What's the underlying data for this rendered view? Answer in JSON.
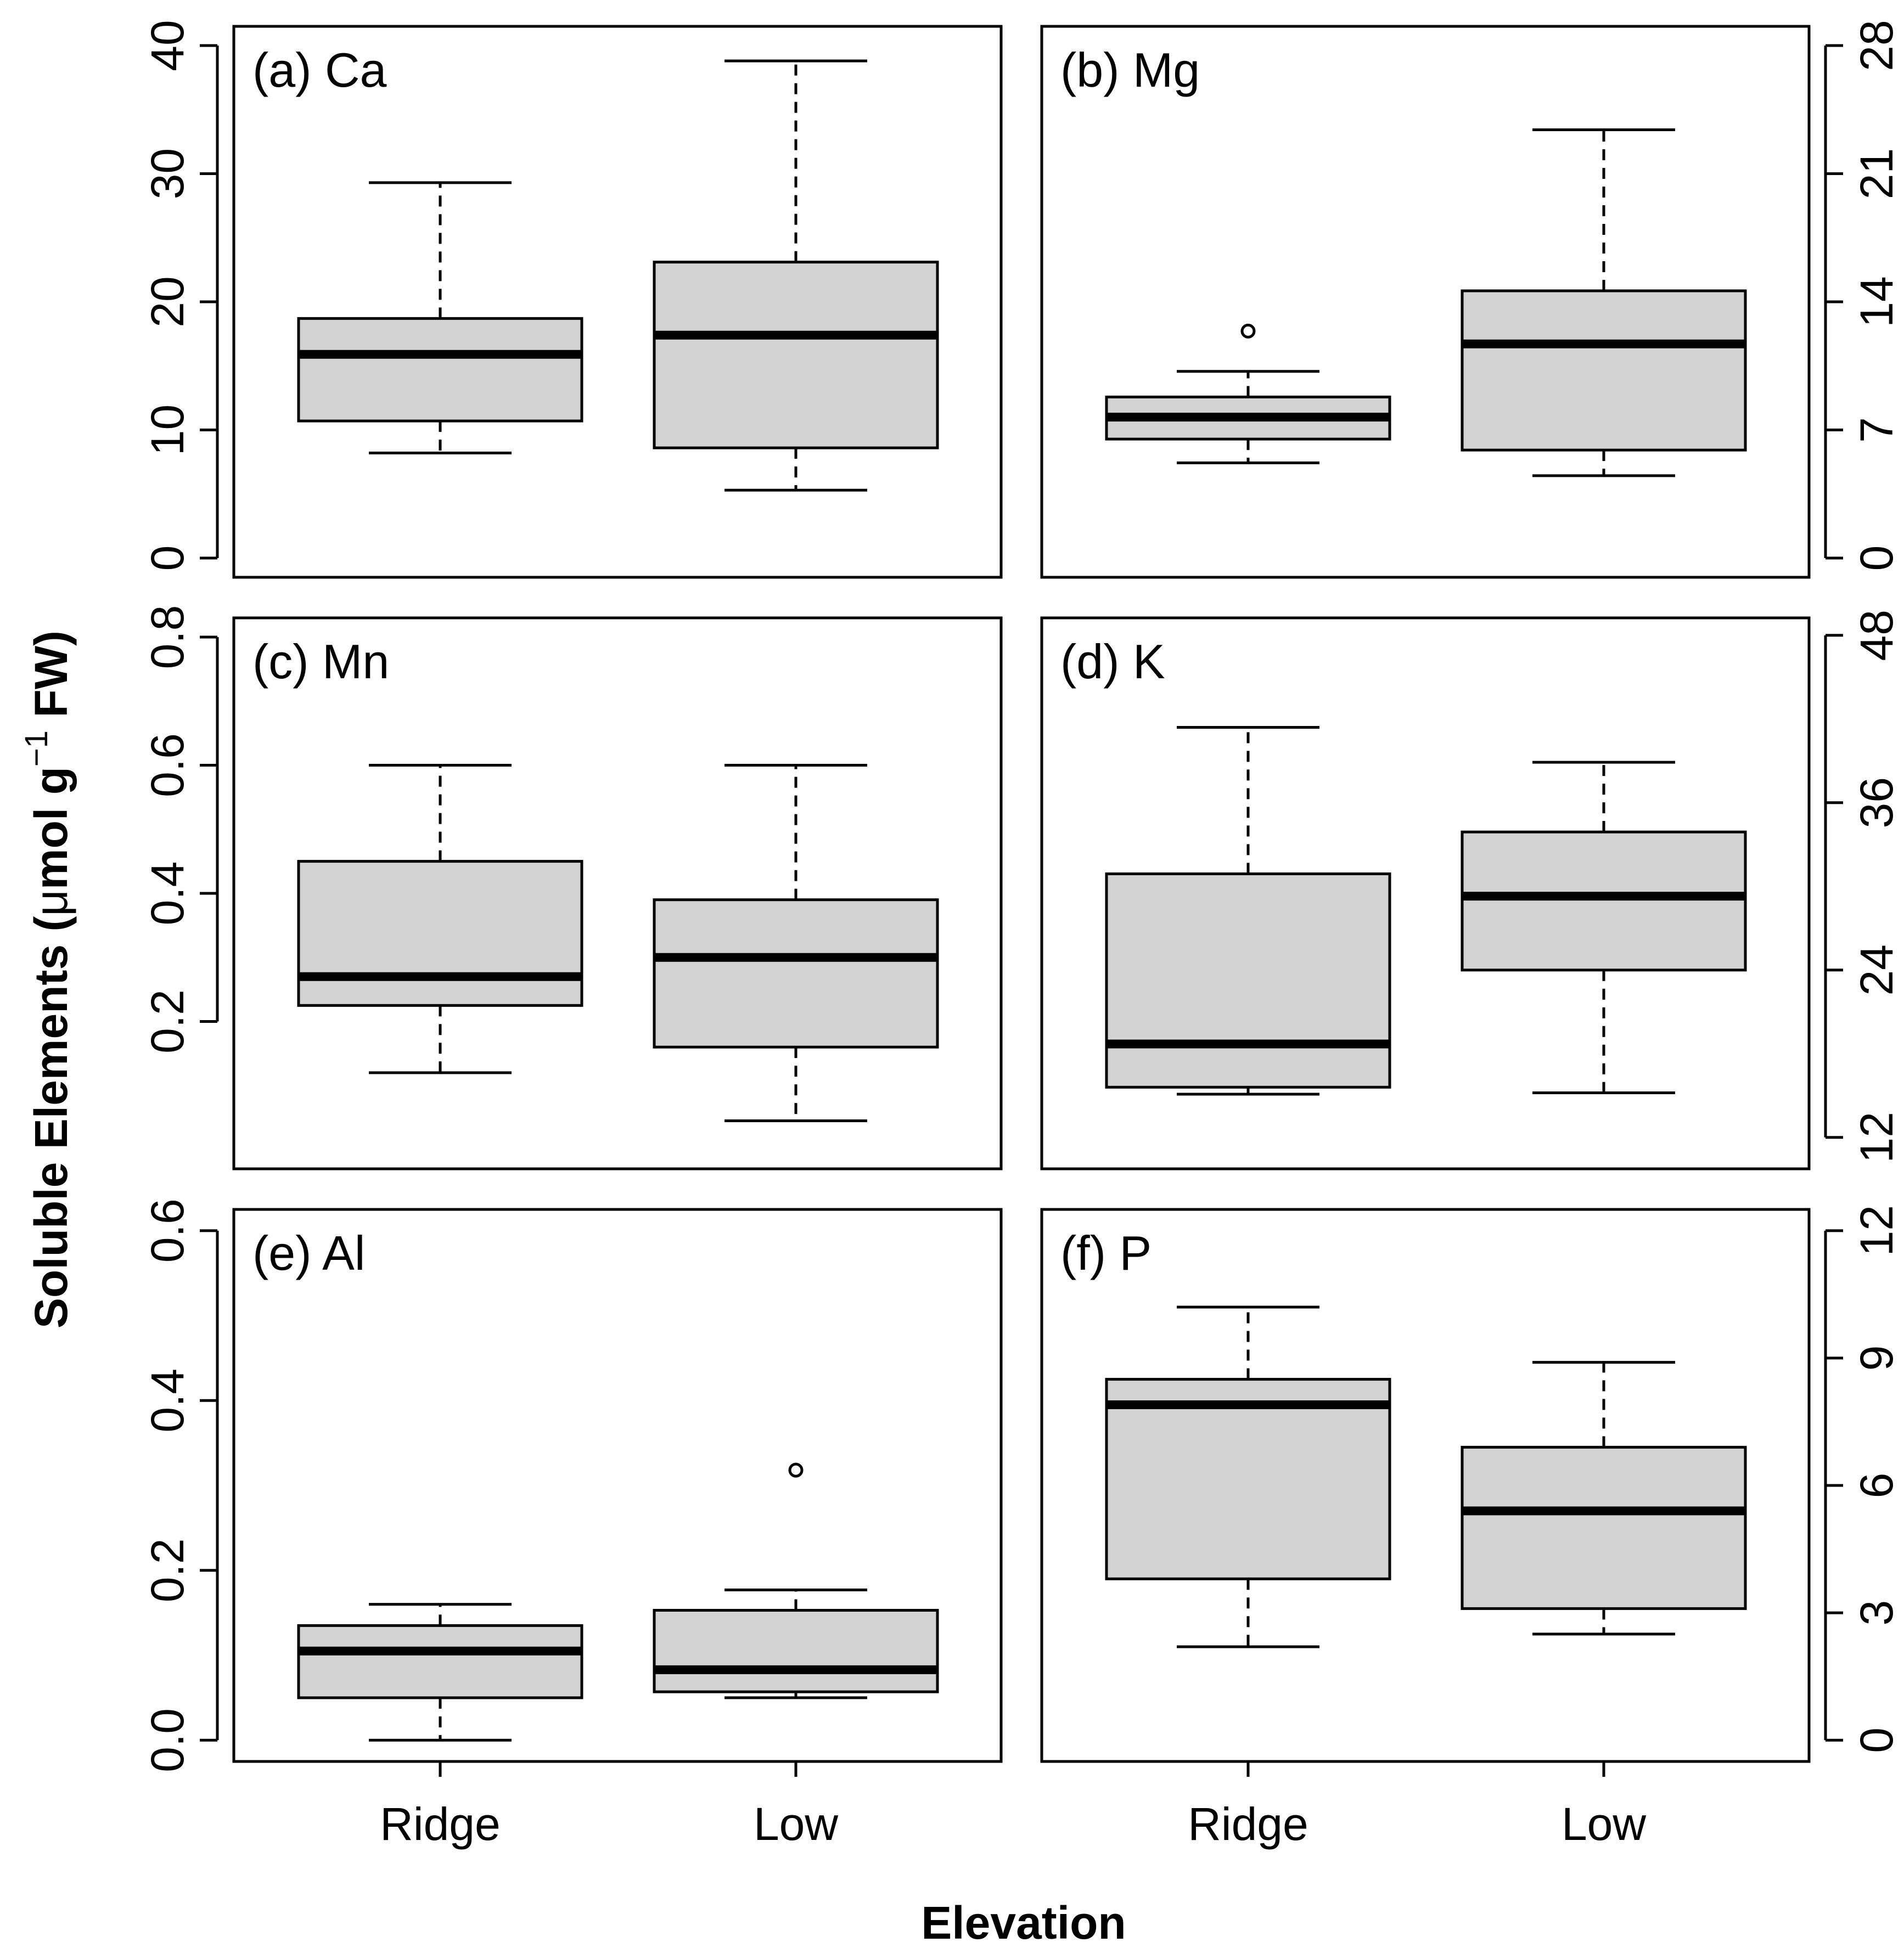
{
  "colors": {
    "box_fill": "#d3d3d3",
    "stroke": "#000000",
    "background": "#ffffff"
  },
  "chart_data": {
    "type": "boxplot",
    "xlabel": "Elevation",
    "ylabel_main": "Soluble Elements (",
    "ylabel_mu": "μ",
    "ylabel_unit": "mol g",
    "ylabel_sup": "−1",
    "ylabel_tail": " FW)",
    "categories": [
      "Ridge",
      "Low"
    ],
    "panels": [
      {
        "label": "(a) Ca",
        "element": "Ca",
        "axis_side": "left",
        "ylim": [
          -1.5,
          41.5
        ],
        "ticks": [
          0,
          10,
          20,
          30,
          40
        ],
        "tick_labels": [
          "0",
          "10",
          "20",
          "30",
          "40"
        ],
        "boxes": [
          {
            "category": "Ridge",
            "whisker_low": 8.2,
            "q1": 10.7,
            "median": 15.9,
            "q3": 18.7,
            "whisker_high": 29.3,
            "outliers": []
          },
          {
            "category": "Low",
            "whisker_low": 5.3,
            "q1": 8.6,
            "median": 17.4,
            "q3": 23.1,
            "whisker_high": 38.8,
            "outliers": []
          }
        ]
      },
      {
        "label": "(b) Mg",
        "element": "Mg",
        "axis_side": "right",
        "ylim": [
          -1.05,
          29.05
        ],
        "ticks": [
          0,
          7,
          14,
          21,
          28
        ],
        "tick_labels": [
          "0",
          "7",
          "14",
          "21",
          "28"
        ],
        "boxes": [
          {
            "category": "Ridge",
            "whisker_low": 5.2,
            "q1": 6.5,
            "median": 7.7,
            "q3": 8.8,
            "whisker_high": 10.2,
            "outliers": [
              12.4
            ]
          },
          {
            "category": "Low",
            "whisker_low": 4.5,
            "q1": 5.9,
            "median": 11.7,
            "q3": 14.6,
            "whisker_high": 23.4,
            "outliers": []
          }
        ]
      },
      {
        "label": "(c) Mn",
        "element": "Mn",
        "axis_side": "left",
        "ylim": [
          -0.03,
          0.83
        ],
        "ticks": [
          0.2,
          0.4,
          0.6,
          0.8
        ],
        "tick_labels": [
          "0.2",
          "0.4",
          "0.6",
          "0.8"
        ],
        "boxes": [
          {
            "category": "Ridge",
            "whisker_low": 0.12,
            "q1": 0.225,
            "median": 0.27,
            "q3": 0.45,
            "whisker_high": 0.6,
            "outliers": []
          },
          {
            "category": "Low",
            "whisker_low": 0.045,
            "q1": 0.16,
            "median": 0.3,
            "q3": 0.39,
            "whisker_high": 0.6,
            "outliers": []
          }
        ]
      },
      {
        "label": "(d) K",
        "element": "K",
        "axis_side": "right",
        "ylim": [
          9.75,
          49.25
        ],
        "ticks": [
          12,
          24,
          36,
          48
        ],
        "tick_labels": [
          "12",
          "24",
          "36",
          "48"
        ],
        "boxes": [
          {
            "category": "Ridge",
            "whisker_low": 15.1,
            "q1": 15.6,
            "median": 18.7,
            "q3": 30.9,
            "whisker_high": 41.4,
            "outliers": []
          },
          {
            "category": "Low",
            "whisker_low": 15.2,
            "q1": 24.0,
            "median": 29.3,
            "q3": 33.9,
            "whisker_high": 38.9,
            "outliers": []
          }
        ]
      },
      {
        "label": "(e) Al",
        "element": "Al",
        "axis_side": "left",
        "ylim": [
          -0.025,
          0.625
        ],
        "ticks": [
          0.0,
          0.2,
          0.4,
          0.6
        ],
        "tick_labels": [
          "0.0",
          "0.2",
          "0.4",
          "0.6"
        ],
        "boxes": [
          {
            "category": "Ridge",
            "whisker_low": 0.0,
            "q1": 0.05,
            "median": 0.105,
            "q3": 0.135,
            "whisker_high": 0.16,
            "outliers": []
          },
          {
            "category": "Low",
            "whisker_low": 0.05,
            "q1": 0.057,
            "median": 0.083,
            "q3": 0.153,
            "whisker_high": 0.177,
            "outliers": [
              0.318
            ]
          }
        ]
      },
      {
        "label": "(f) P",
        "element": "P",
        "axis_side": "right",
        "ylim": [
          -0.5,
          12.5
        ],
        "ticks": [
          0,
          3,
          6,
          9,
          12
        ],
        "tick_labels": [
          "0",
          "3",
          "6",
          "9",
          "12"
        ],
        "boxes": [
          {
            "category": "Ridge",
            "whisker_low": 2.2,
            "q1": 3.8,
            "median": 7.9,
            "q3": 8.5,
            "whisker_high": 10.2,
            "outliers": []
          },
          {
            "category": "Low",
            "whisker_low": 2.5,
            "q1": 3.1,
            "median": 5.4,
            "q3": 6.9,
            "whisker_high": 8.9,
            "outliers": []
          }
        ]
      }
    ]
  }
}
